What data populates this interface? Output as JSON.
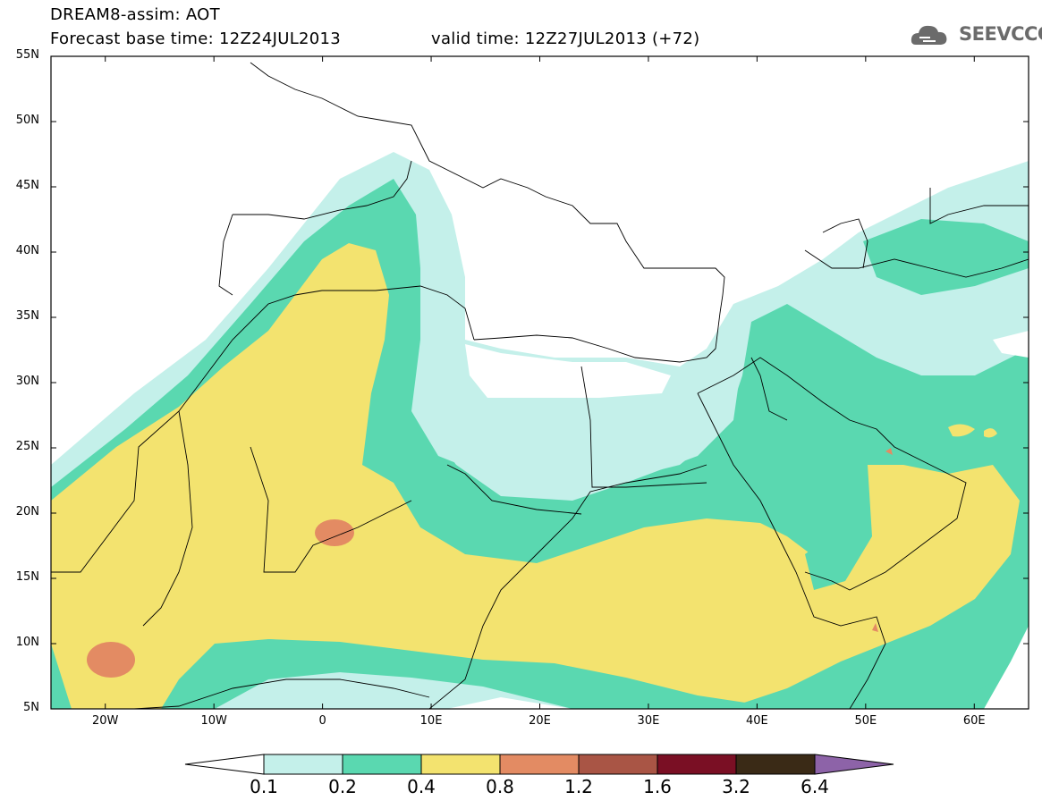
{
  "header": {
    "title": "DREAM8-assim: AOT",
    "base_time": "Forecast base time: 12Z24JUL2013",
    "valid_time": "valid time: 12Z27JUL2013 (+72)"
  },
  "logo": {
    "text": "SEEVCCC",
    "icon": "cloud-icon"
  },
  "map": {
    "lat_labels": [
      "55N",
      "50N",
      "45N",
      "40N",
      "35N",
      "30N",
      "25N",
      "20N",
      "15N",
      "10N",
      "5N"
    ],
    "lon_labels": [
      "20W",
      "10W",
      "0",
      "10E",
      "20E",
      "30E",
      "40E",
      "50E",
      "60E"
    ],
    "lat_range": [
      5,
      55
    ],
    "lon_range": [
      -25,
      65
    ]
  },
  "colorbar": {
    "labels": [
      "0.1",
      "0.2",
      "0.4",
      "0.8",
      "1.2",
      "1.6",
      "3.2",
      "6.4"
    ],
    "colors": [
      "#c4f0ea",
      "#5ad8b0",
      "#f3e36f",
      "#e38b63",
      "#a95545",
      "#7a0f24",
      "#3a2a16",
      "#8d63a8"
    ]
  }
}
